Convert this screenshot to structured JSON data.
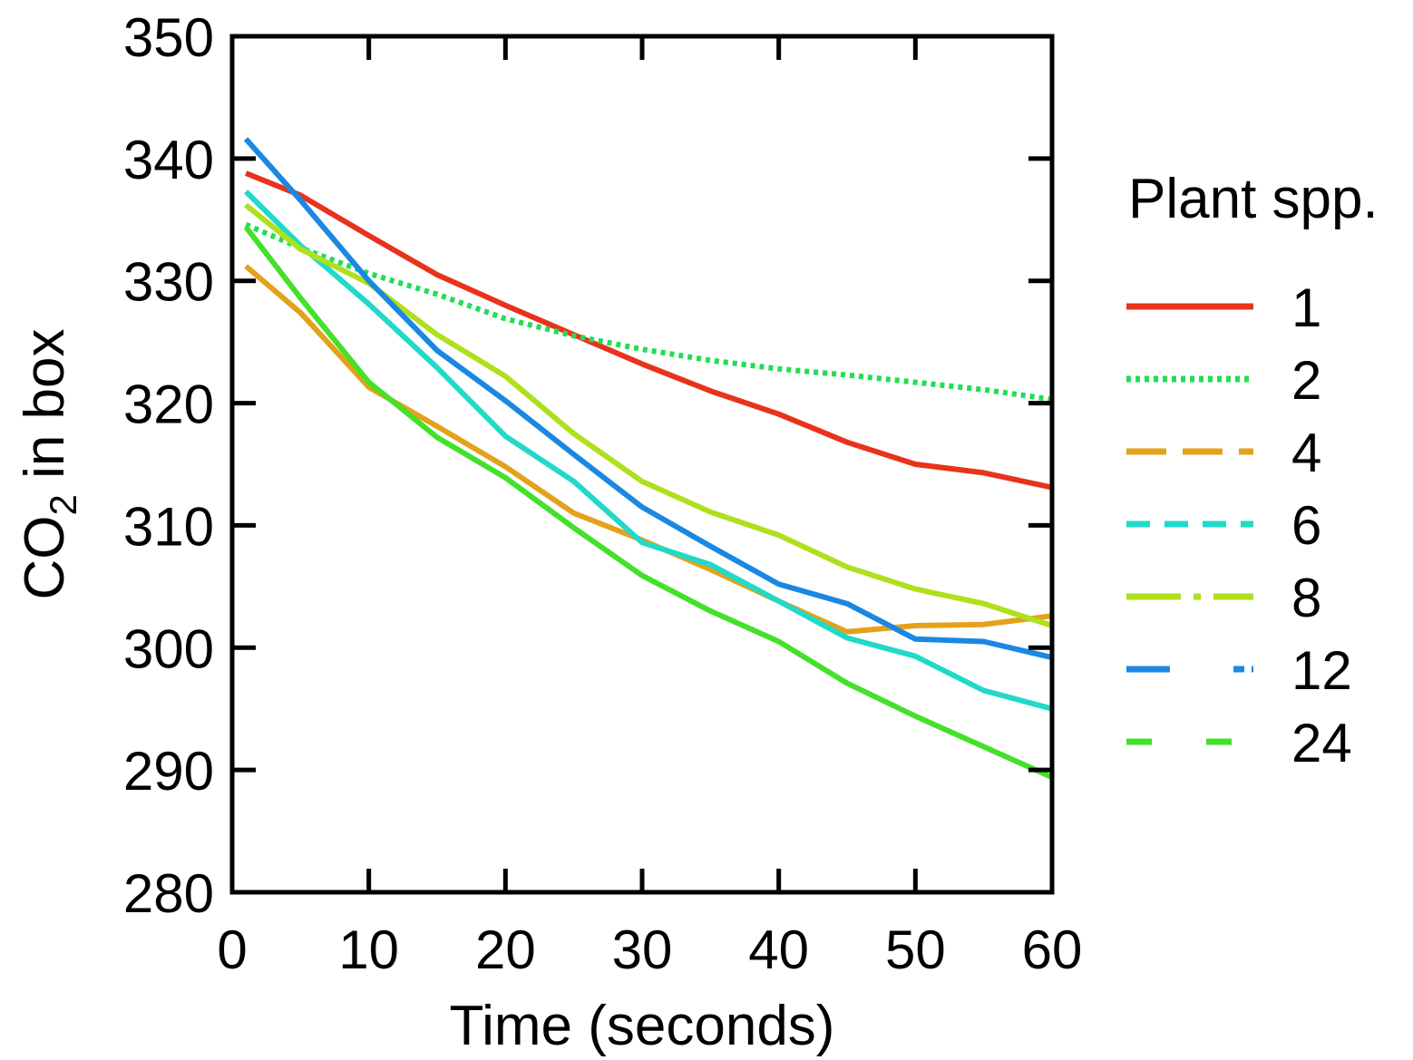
{
  "chart_data": {
    "type": "line",
    "xlabel": "Time (seconds)",
    "ylabel_main": "CO",
    "ylabel_sub": "2",
    "ylabel_tail": " in box",
    "xlim": [
      0,
      60
    ],
    "ylim": [
      280,
      350
    ],
    "xticks": [
      0,
      10,
      20,
      30,
      40,
      50,
      60
    ],
    "yticks": [
      280,
      290,
      300,
      310,
      320,
      330,
      340,
      350
    ],
    "grid": false,
    "legend": {
      "title": "Plant spp.",
      "placement": "right"
    },
    "x": [
      1,
      5,
      10,
      15,
      20,
      25,
      30,
      35,
      40,
      45,
      50,
      55,
      60
    ],
    "series": [
      {
        "name": "1",
        "color": "#e8331c",
        "dash": "solid",
        "values": [
          338.8,
          337,
          333.7,
          330.5,
          328,
          325.6,
          323.2,
          321,
          319.1,
          316.8,
          315,
          314.3,
          313.1
        ]
      },
      {
        "name": "2",
        "color": "#22dd55",
        "dash": "dotted",
        "values": [
          334.6,
          332.7,
          330.6,
          328.9,
          326.9,
          325.5,
          324.4,
          323.5,
          322.8,
          322.3,
          321.7,
          321.1,
          320.3
        ]
      },
      {
        "name": "4",
        "color": "#e3a21a",
        "dash": "long",
        "values": [
          331.2,
          327.4,
          321.3,
          318.1,
          314.8,
          311,
          308.8,
          306.4,
          303.8,
          301.3,
          301.8,
          301.9,
          302.6
        ]
      },
      {
        "name": "6",
        "color": "#22d9c9",
        "dash": "dashed",
        "values": [
          337.3,
          332.9,
          328.1,
          322.9,
          317.3,
          313.6,
          308.6,
          306.8,
          303.8,
          300.8,
          299.3,
          296.5,
          295
        ]
      },
      {
        "name": "8",
        "color": "#aee01c",
        "dash": "dashdot",
        "values": [
          336.2,
          332.6,
          329.8,
          325.6,
          322.2,
          317.5,
          313.6,
          311.1,
          309.2,
          306.6,
          304.8,
          303.6,
          301.8
        ]
      },
      {
        "name": "12",
        "color": "#1a88e3",
        "dash": "longdot",
        "values": [
          341.6,
          336.6,
          330,
          324.3,
          320.2,
          315.8,
          311.5,
          308.3,
          305.2,
          303.6,
          300.7,
          300.5,
          299.2
        ]
      },
      {
        "name": "24",
        "color": "#44e02a",
        "dash": "sparse",
        "values": [
          334.4,
          328.6,
          321.7,
          317.2,
          313.9,
          309.8,
          305.9,
          303,
          300.5,
          297.1,
          294.4,
          291.9,
          289.4
        ]
      }
    ]
  }
}
